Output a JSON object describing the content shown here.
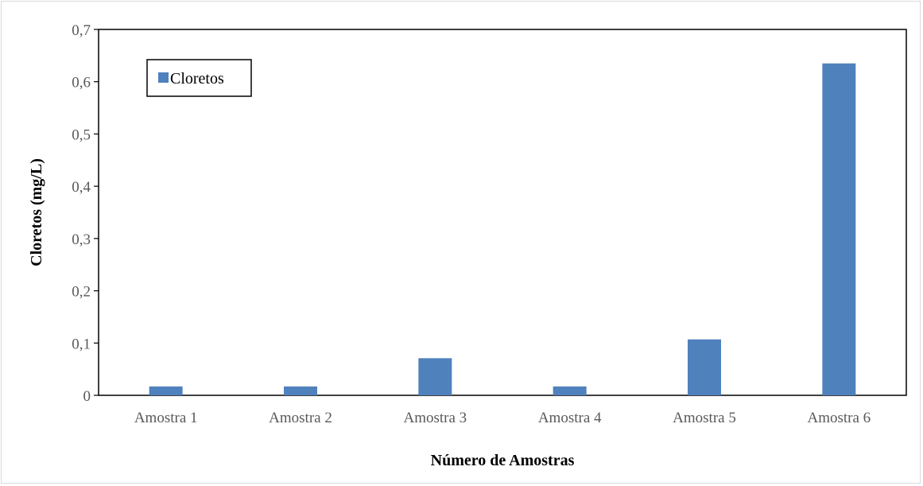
{
  "chart_data": {
    "type": "bar",
    "categories": [
      "Amostra 1",
      "Amostra 2",
      "Amostra 3",
      "Amostra 4",
      "Amostra 5",
      "Amostra 6"
    ],
    "series": [
      {
        "name": "Cloretos",
        "values": [
          0.017,
          0.017,
          0.071,
          0.017,
          0.107,
          0.635
        ]
      }
    ],
    "xlabel": "Número de Amostras",
    "ylabel": "Cloretos (mg/L)",
    "ylim": [
      0,
      0.7
    ],
    "yticks": [
      0,
      0.1,
      0.2,
      0.3,
      0.4,
      0.5,
      0.6,
      0.7
    ],
    "ytick_labels": [
      "0",
      "0,1",
      "0,2",
      "0,3",
      "0,4",
      "0,5",
      "0,6",
      "0,7"
    ],
    "legend_position": "top-left",
    "grid": false,
    "colors": {
      "bar": "#4F81BD",
      "axis": "#000000",
      "frame": "#d9d9d9"
    }
  }
}
